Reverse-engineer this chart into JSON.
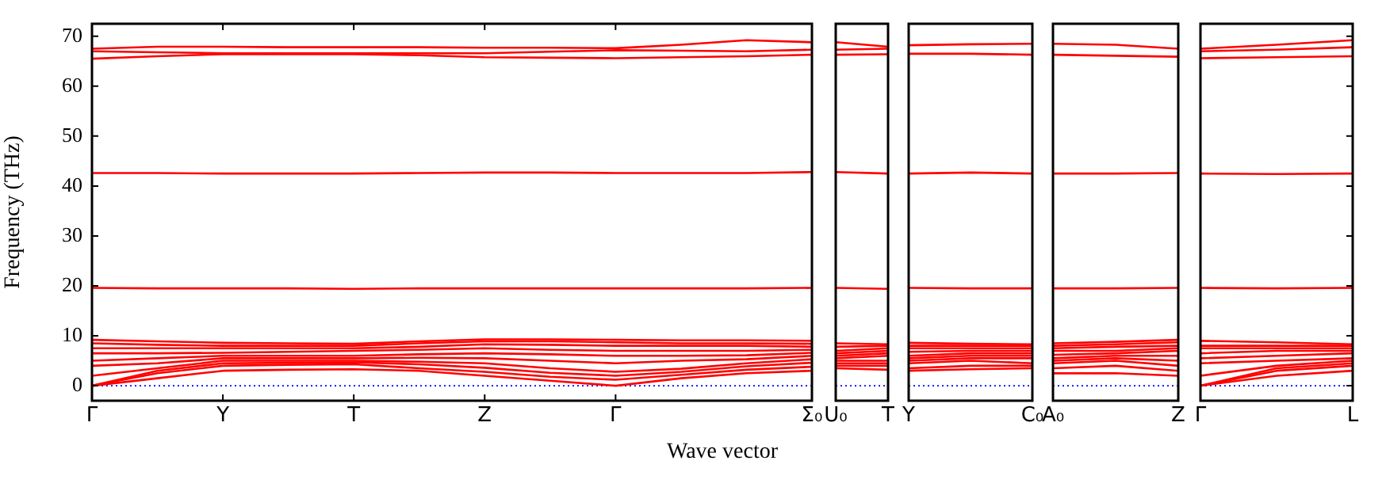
{
  "chart_data": [
    {
      "type": "line",
      "ylabel": "Frequency (THz)",
      "xlabel": "Wave vector",
      "categories": [
        "Γ",
        null,
        "Y",
        null,
        "T",
        null,
        "Z",
        null,
        "Γ",
        null,
        null,
        "Σ₀"
      ],
      "ylim": [
        -3,
        72.5
      ],
      "yticks": [
        0,
        10,
        20,
        30,
        40,
        50,
        60,
        70
      ],
      "ref_lines": [
        {
          "axis": "y",
          "value": 0,
          "color": "#0000ff",
          "line_style": "dotted"
        }
      ],
      "series": [
        {
          "color": "#ff0000",
          "values": [
            67.5,
            67.9,
            67.9,
            67.8,
            67.8,
            67.8,
            67.7,
            67.7,
            67.6,
            68.3,
            69.2,
            68.8
          ]
        },
        {
          "color": "#ff0000",
          "values": [
            67,
            66.8,
            66.6,
            66.6,
            66.6,
            66.6,
            66.6,
            66.9,
            67.2,
            67.1,
            67,
            67.3
          ]
        },
        {
          "color": "#ff0000",
          "values": [
            65.5,
            66,
            66.4,
            66.4,
            66.4,
            66.2,
            65.8,
            65.7,
            65.6,
            65.8,
            66,
            66.3
          ]
        },
        {
          "color": "#ff0000",
          "values": [
            42.6,
            42.6,
            42.5,
            42.5,
            42.5,
            42.6,
            42.7,
            42.7,
            42.6,
            42.6,
            42.6,
            42.8
          ]
        },
        {
          "color": "#ff0000",
          "values": [
            19.6,
            19.5,
            19.5,
            19.5,
            19.4,
            19.5,
            19.5,
            19.5,
            19.5,
            19.5,
            19.5,
            19.6
          ]
        },
        {
          "color": "#ff0000",
          "values": [
            0,
            1.5,
            3,
            3.2,
            3.3,
            3,
            2,
            1,
            0,
            1.5,
            2.5,
            3
          ]
        },
        {
          "color": "#ff0000",
          "values": [
            0,
            2.5,
            4,
            4.2,
            4.3,
            3.5,
            2.8,
            1.8,
            1.2,
            2.2,
            3.2,
            3.8
          ]
        },
        {
          "color": "#ff0000",
          "values": [
            0,
            3,
            4.5,
            4.6,
            4.7,
            4.3,
            3.6,
            2.6,
            2,
            2.8,
            3.9,
            4.6
          ]
        },
        {
          "color": "#ff0000",
          "values": [
            2,
            3.5,
            5,
            5,
            5,
            4.8,
            4.5,
            3.5,
            2.8,
            3.4,
            4.5,
            5.3
          ]
        },
        {
          "color": "#ff0000",
          "values": [
            4,
            4.5,
            5.5,
            5.5,
            5.5,
            5.6,
            5.5,
            5,
            4.5,
            5,
            5.3,
            6
          ]
        },
        {
          "color": "#ff0000",
          "values": [
            5,
            5.5,
            6,
            6,
            6,
            6.3,
            6.5,
            6.3,
            6,
            6,
            6.1,
            6.6
          ]
        },
        {
          "color": "#ff0000",
          "values": [
            6.5,
            6.5,
            6.6,
            6.8,
            7,
            7.2,
            7.5,
            7.2,
            7,
            7,
            7,
            7.2
          ]
        },
        {
          "color": "#ff0000",
          "values": [
            7.5,
            7.5,
            7.5,
            7.5,
            7.5,
            7.8,
            8.3,
            8.2,
            8,
            8,
            8,
            7.8
          ]
        },
        {
          "color": "#ff0000",
          "values": [
            8.5,
            8.2,
            8,
            8,
            8,
            8.5,
            8.9,
            8.9,
            8.7,
            8.5,
            8.5,
            8.4
          ]
        },
        {
          "color": "#ff0000",
          "values": [
            9.2,
            8.9,
            8.6,
            8.5,
            8.4,
            8.9,
            9.3,
            9.3,
            9.2,
            9.1,
            9.1,
            9
          ]
        }
      ]
    },
    {
      "type": "line",
      "tick_labels": "x",
      "categories": [
        "U₀",
        "T"
      ],
      "ylim": [
        -3,
        72.5
      ],
      "yticks": [
        0,
        10,
        20,
        30,
        40,
        50,
        60,
        70
      ],
      "ref_lines": [
        {
          "axis": "y",
          "value": 0,
          "color": "#0000ff",
          "line_style": "dotted"
        }
      ],
      "series": [
        {
          "color": "#ff0000",
          "values": [
            68.8,
            67.9
          ]
        },
        {
          "color": "#ff0000",
          "values": [
            67.3,
            67.5
          ]
        },
        {
          "color": "#ff0000",
          "values": [
            66.3,
            66.4
          ]
        },
        {
          "color": "#ff0000",
          "values": [
            42.8,
            42.5
          ]
        },
        {
          "color": "#ff0000",
          "values": [
            19.6,
            19.4
          ]
        },
        {
          "color": "#ff0000",
          "values": [
            3.5,
            3.2
          ]
        },
        {
          "color": "#ff0000",
          "values": [
            4,
            4
          ]
        },
        {
          "color": "#ff0000",
          "values": [
            4.5,
            4.5
          ]
        },
        {
          "color": "#ff0000",
          "values": [
            5,
            5
          ]
        },
        {
          "color": "#ff0000",
          "values": [
            5.5,
            6
          ]
        },
        {
          "color": "#ff0000",
          "values": [
            6,
            6.5
          ]
        },
        {
          "color": "#ff0000",
          "values": [
            6.5,
            7
          ]
        },
        {
          "color": "#ff0000",
          "values": [
            7,
            7.5
          ]
        },
        {
          "color": "#ff0000",
          "values": [
            7.8,
            8
          ]
        },
        {
          "color": "#ff0000",
          "values": [
            8.5,
            8.3
          ]
        }
      ]
    },
    {
      "type": "line",
      "tick_labels": "x",
      "categories": [
        "Y",
        null,
        "C₀"
      ],
      "ylim": [
        -3,
        72.5
      ],
      "yticks": [
        0,
        10,
        20,
        30,
        40,
        50,
        60,
        70
      ],
      "ref_lines": [
        {
          "axis": "y",
          "value": 0,
          "color": "#0000ff",
          "line_style": "dotted"
        }
      ],
      "series": [
        {
          "color": "#ff0000",
          "values": [
            68.2,
            68.4,
            68.5
          ]
        },
        {
          "color": "#ff0000",
          "values": [
            66.5,
            66.5,
            66.3
          ]
        },
        {
          "color": "#ff0000",
          "values": [
            42.5,
            42.7,
            42.5
          ]
        },
        {
          "color": "#ff0000",
          "values": [
            19.6,
            19.5,
            19.5
          ]
        },
        {
          "color": "#ff0000",
          "values": [
            3,
            3.3,
            3.5
          ]
        },
        {
          "color": "#ff0000",
          "values": [
            3.5,
            4,
            4
          ]
        },
        {
          "color": "#ff0000",
          "values": [
            4.5,
            5,
            4.5
          ]
        },
        {
          "color": "#ff0000",
          "values": [
            5,
            5.5,
            5.5
          ]
        },
        {
          "color": "#ff0000",
          "values": [
            5.5,
            6,
            6
          ]
        },
        {
          "color": "#ff0000",
          "values": [
            6,
            6.5,
            6.5
          ]
        },
        {
          "color": "#ff0000",
          "values": [
            6.8,
            7,
            7
          ]
        },
        {
          "color": "#ff0000",
          "values": [
            7.5,
            7.5,
            7.5
          ]
        },
        {
          "color": "#ff0000",
          "values": [
            8,
            8,
            8
          ]
        },
        {
          "color": "#ff0000",
          "values": [
            8.6,
            8.4,
            8.3
          ]
        }
      ]
    },
    {
      "type": "line",
      "tick_labels": "x",
      "categories": [
        "A₀",
        null,
        "Z"
      ],
      "ylim": [
        -3,
        72.5
      ],
      "yticks": [
        0,
        10,
        20,
        30,
        40,
        50,
        60,
        70
      ],
      "ref_lines": [
        {
          "axis": "y",
          "value": 0,
          "color": "#0000ff",
          "line_style": "dotted"
        }
      ],
      "series": [
        {
          "color": "#ff0000",
          "values": [
            68.5,
            68.3,
            67.5
          ]
        },
        {
          "color": "#ff0000",
          "values": [
            66.3,
            66.1,
            65.9
          ]
        },
        {
          "color": "#ff0000",
          "values": [
            42.5,
            42.5,
            42.6
          ]
        },
        {
          "color": "#ff0000",
          "values": [
            19.5,
            19.5,
            19.6
          ]
        },
        {
          "color": "#ff0000",
          "values": [
            2.5,
            2.5,
            2
          ]
        },
        {
          "color": "#ff0000",
          "values": [
            3.5,
            4,
            3
          ]
        },
        {
          "color": "#ff0000",
          "values": [
            4.5,
            5,
            4
          ]
        },
        {
          "color": "#ff0000",
          "values": [
            5,
            5.5,
            5
          ]
        },
        {
          "color": "#ff0000",
          "values": [
            5.5,
            6,
            6
          ]
        },
        {
          "color": "#ff0000",
          "values": [
            6.2,
            6.5,
            7
          ]
        },
        {
          "color": "#ff0000",
          "values": [
            7,
            7,
            7.5
          ]
        },
        {
          "color": "#ff0000",
          "values": [
            7.5,
            7.8,
            8
          ]
        },
        {
          "color": "#ff0000",
          "values": [
            8,
            8.3,
            8.7
          ]
        },
        {
          "color": "#ff0000",
          "values": [
            8.5,
            8.8,
            9.2
          ]
        }
      ]
    },
    {
      "type": "line",
      "tick_labels": "x",
      "categories": [
        "Γ",
        null,
        "L"
      ],
      "ylim": [
        -3,
        72.5
      ],
      "yticks": [
        0,
        10,
        20,
        30,
        40,
        50,
        60,
        70
      ],
      "ref_lines": [
        {
          "axis": "y",
          "value": 0,
          "color": "#0000ff",
          "line_style": "dotted"
        }
      ],
      "series": [
        {
          "color": "#ff0000",
          "values": [
            67.5,
            68.3,
            69.2
          ]
        },
        {
          "color": "#ff0000",
          "values": [
            67,
            67.3,
            67.8
          ]
        },
        {
          "color": "#ff0000",
          "values": [
            65.6,
            65.8,
            66
          ]
        },
        {
          "color": "#ff0000",
          "values": [
            42.5,
            42.4,
            42.5
          ]
        },
        {
          "color": "#ff0000",
          "values": [
            19.6,
            19.5,
            19.6
          ]
        },
        {
          "color": "#ff0000",
          "values": [
            0,
            2,
            3
          ]
        },
        {
          "color": "#ff0000",
          "values": [
            0,
            3,
            4
          ]
        },
        {
          "color": "#ff0000",
          "values": [
            0,
            3.5,
            4.5
          ]
        },
        {
          "color": "#ff0000",
          "values": [
            2,
            4,
            5
          ]
        },
        {
          "color": "#ff0000",
          "values": [
            4.5,
            5,
            5.5
          ]
        },
        {
          "color": "#ff0000",
          "values": [
            5.5,
            6,
            6.5
          ]
        },
        {
          "color": "#ff0000",
          "values": [
            6.5,
            7,
            7
          ]
        },
        {
          "color": "#ff0000",
          "values": [
            7.5,
            7.5,
            7.5
          ]
        },
        {
          "color": "#ff0000",
          "values": [
            8,
            8,
            8
          ]
        },
        {
          "color": "#ff0000",
          "values": [
            9,
            8.7,
            8.3
          ]
        }
      ]
    }
  ]
}
